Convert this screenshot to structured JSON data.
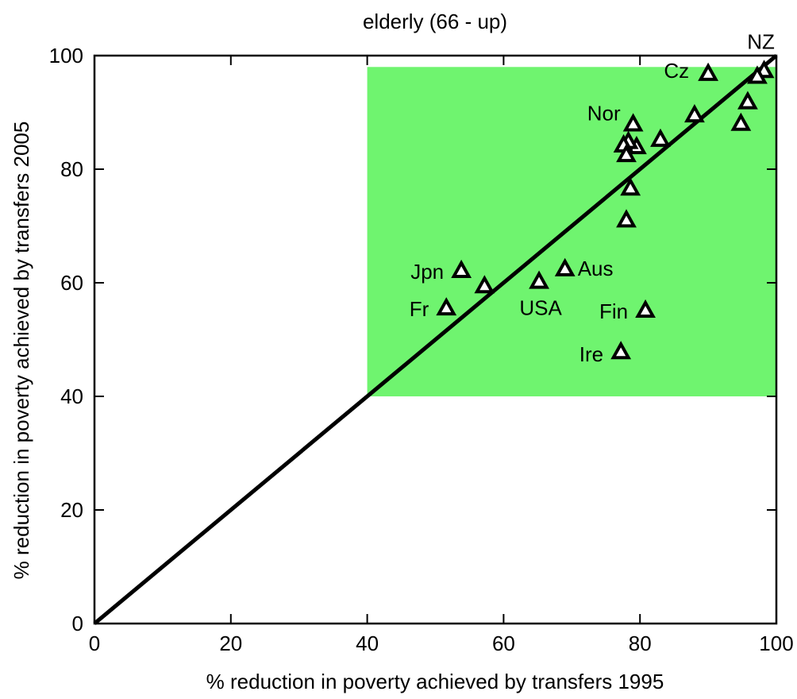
{
  "chart_data": {
    "type": "scatter",
    "title": "elderly (66 - up)",
    "xlabel": "% reduction in poverty achieved by transfers 1995",
    "ylabel": "% reduction in poverty achieved by transfers 2005",
    "xlim": [
      0,
      100
    ],
    "ylim": [
      0,
      100
    ],
    "xticks": [
      0,
      20,
      40,
      60,
      80,
      100
    ],
    "yticks": [
      0,
      20,
      40,
      60,
      80,
      100
    ],
    "grid": false,
    "highlight_region": {
      "x": [
        40,
        100
      ],
      "y": [
        40,
        98
      ],
      "color": "#6ff46f"
    },
    "reference_line": {
      "from": [
        0,
        0
      ],
      "to": [
        100,
        100
      ],
      "color": "#000000"
    },
    "marker": "open-triangle",
    "points": [
      {
        "x": 98.2,
        "y": 97.3,
        "label": "NZ"
      },
      {
        "x": 97.2,
        "y": 96.3,
        "label": ""
      },
      {
        "x": 90.0,
        "y": 96.8,
        "label": "Cz"
      },
      {
        "x": 95.8,
        "y": 91.8,
        "label": ""
      },
      {
        "x": 94.8,
        "y": 88.0,
        "label": ""
      },
      {
        "x": 88.0,
        "y": 89.5,
        "label": ""
      },
      {
        "x": 83.0,
        "y": 85.2,
        "label": ""
      },
      {
        "x": 79.5,
        "y": 83.9,
        "label": ""
      },
      {
        "x": 79.0,
        "y": 87.9,
        "label": "Nor"
      },
      {
        "x": 78.3,
        "y": 84.8,
        "label": ""
      },
      {
        "x": 77.6,
        "y": 84.2,
        "label": ""
      },
      {
        "x": 78.0,
        "y": 82.5,
        "label": ""
      },
      {
        "x": 78.6,
        "y": 76.6,
        "label": ""
      },
      {
        "x": 78.0,
        "y": 71.0,
        "label": ""
      },
      {
        "x": 53.8,
        "y": 62.1,
        "label": "Jpn"
      },
      {
        "x": 57.2,
        "y": 59.4,
        "label": ""
      },
      {
        "x": 65.2,
        "y": 60.2,
        "label": "USA"
      },
      {
        "x": 69.0,
        "y": 62.4,
        "label": "Aus"
      },
      {
        "x": 51.6,
        "y": 55.5,
        "label": "Fr"
      },
      {
        "x": 80.8,
        "y": 55.1,
        "label": "Fin"
      },
      {
        "x": 77.2,
        "y": 47.8,
        "label": "Ire"
      }
    ]
  }
}
